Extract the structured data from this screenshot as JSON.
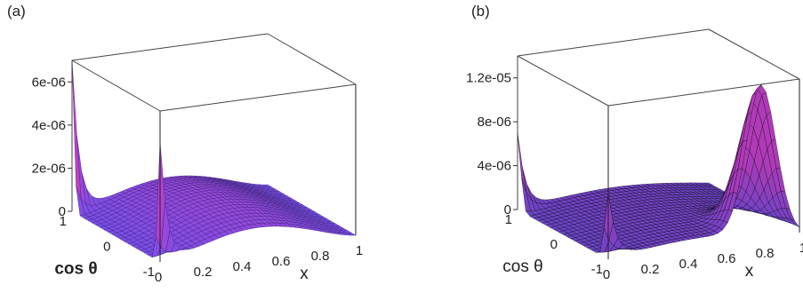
{
  "chart_data": [
    {
      "type": "surface3d",
      "panel_label": "(a)",
      "xlabel": "x",
      "ylabel": "cos θ",
      "x_ticks": [
        "0",
        "0.2",
        "0.4",
        "0.6",
        "0.8",
        "1"
      ],
      "y_ticks": [
        "1",
        "0",
        "-1"
      ],
      "z_ticks": [
        "0",
        "2e-06",
        "4e-06",
        "6e-06"
      ],
      "xlim": [
        0,
        1
      ],
      "ylim": [
        -1,
        1
      ],
      "zlim": [
        0,
        7e-06
      ],
      "surface": "two sharp peaks near x=0 at cos θ = ±1 (~7e-06 and ~5.6e-06), a broad hump ~1.3e-06 around x≈0.5–0.6, falling to 0 at x=1",
      "colors": {
        "fill": "#7a4ee8",
        "peak": "#c03fc8",
        "mesh": "#2a1660"
      }
    },
    {
      "type": "surface3d",
      "panel_label": "(b)",
      "xlabel": "x",
      "ylabel": "cos θ",
      "x_ticks": [
        "0",
        "0.2",
        "0.4",
        "0.6",
        "0.8",
        "1"
      ],
      "y_ticks": [
        "1",
        "0",
        "-1"
      ],
      "z_ticks": [
        "0",
        "4e-06",
        "8e-06",
        "1.2e-05"
      ],
      "xlim": [
        0,
        1
      ],
      "ylim": [
        -1,
        1
      ],
      "zlim": [
        0,
        1.4e-05
      ],
      "surface": "small ridges near x=0 at cos θ = ±1 (~7e-06), large dense peak ~1.35e-05 near x≈0.8, cos θ = -1",
      "colors": {
        "fill": "#6a44c8",
        "peak": "#b03ab8",
        "mesh": "#000000"
      }
    }
  ]
}
